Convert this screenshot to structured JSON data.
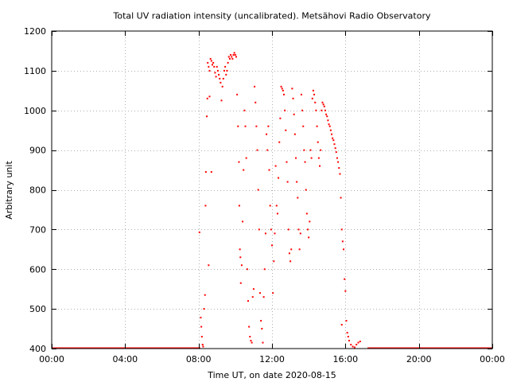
{
  "chart_data": {
    "type": "scatter",
    "title": "Total UV radiation intensity (uncalibrated). Metsähovi Radio Observatory",
    "xlabel": "Time UT, on date 2020-08-15",
    "ylabel": "Arbitrary unit",
    "xlim": [
      0,
      24
    ],
    "ylim": [
      400,
      1200
    ],
    "x_unit": "hours UT",
    "xticks": [
      0,
      4,
      8,
      12,
      16,
      20,
      24
    ],
    "xtick_labels": [
      "00:00",
      "04:00",
      "08:00",
      "12:00",
      "16:00",
      "20:00",
      "00:00"
    ],
    "yticks": [
      400,
      500,
      600,
      700,
      800,
      900,
      1000,
      1100,
      1200
    ],
    "ytick_labels": [
      "400",
      "500",
      "600",
      "700",
      "800",
      "900",
      "1000",
      "1100",
      "1200"
    ],
    "grid": true,
    "color": "#ff0000",
    "baseline": {
      "y": 400,
      "x_ranges": [
        [
          0,
          8.1
        ],
        [
          17.2,
          24
        ]
      ]
    },
    "series": [
      {
        "points": [
          [
            8.05,
            693
          ],
          [
            8.12,
            478
          ],
          [
            8.15,
            455
          ],
          [
            8.18,
            430
          ],
          [
            8.22,
            410
          ],
          [
            8.25,
            405
          ],
          [
            8.3,
            500
          ],
          [
            8.35,
            535
          ],
          [
            8.38,
            760
          ],
          [
            8.4,
            845
          ],
          [
            8.45,
            985
          ],
          [
            8.48,
            1030
          ],
          [
            8.55,
            610
          ],
          [
            8.6,
            1035
          ],
          [
            8.7,
            845
          ],
          [
            8.5,
            1120
          ],
          [
            8.55,
            1110
          ],
          [
            8.6,
            1100
          ],
          [
            8.65,
            1130
          ],
          [
            8.7,
            1125
          ],
          [
            8.75,
            1115
          ],
          [
            8.8,
            1120
          ],
          [
            8.85,
            1110
          ],
          [
            8.9,
            1095
          ],
          [
            8.95,
            1085
          ],
          [
            9.0,
            1110
          ],
          [
            9.05,
            1100
          ],
          [
            9.1,
            1090
          ],
          [
            9.15,
            1080
          ],
          [
            9.2,
            1070
          ],
          [
            9.25,
            1025
          ],
          [
            9.3,
            1060
          ],
          [
            9.35,
            1080
          ],
          [
            9.4,
            1100
          ],
          [
            9.45,
            1110
          ],
          [
            9.5,
            1090
          ],
          [
            9.55,
            1100
          ],
          [
            9.6,
            1120
          ],
          [
            9.65,
            1135
          ],
          [
            9.7,
            1130
          ],
          [
            9.75,
            1140
          ],
          [
            9.8,
            1135
          ],
          [
            9.85,
            1130
          ],
          [
            9.9,
            1140
          ],
          [
            9.95,
            1145
          ],
          [
            10.0,
            1140
          ],
          [
            10.05,
            1135
          ],
          [
            10.1,
            1040
          ],
          [
            10.15,
            960
          ],
          [
            10.2,
            870
          ],
          [
            10.22,
            760
          ],
          [
            10.25,
            650
          ],
          [
            10.28,
            630
          ],
          [
            10.3,
            565
          ],
          [
            10.35,
            610
          ],
          [
            10.4,
            720
          ],
          [
            10.45,
            850
          ],
          [
            10.5,
            1000
          ],
          [
            10.55,
            960
          ],
          [
            10.6,
            880
          ],
          [
            10.65,
            600
          ],
          [
            10.7,
            520
          ],
          [
            10.75,
            455
          ],
          [
            10.8,
            430
          ],
          [
            10.85,
            420
          ],
          [
            10.9,
            415
          ],
          [
            10.95,
            530
          ],
          [
            11.0,
            550
          ],
          [
            11.05,
            1060
          ],
          [
            11.1,
            1020
          ],
          [
            11.15,
            960
          ],
          [
            11.2,
            900
          ],
          [
            11.25,
            800
          ],
          [
            11.3,
            700
          ],
          [
            11.35,
            540
          ],
          [
            11.4,
            470
          ],
          [
            11.45,
            450
          ],
          [
            11.5,
            415
          ],
          [
            11.55,
            530
          ],
          [
            11.6,
            600
          ],
          [
            11.65,
            690
          ],
          [
            11.7,
            940
          ],
          [
            11.75,
            900
          ],
          [
            11.8,
            960
          ],
          [
            11.85,
            850
          ],
          [
            11.9,
            760
          ],
          [
            11.95,
            700
          ],
          [
            12.0,
            660
          ],
          [
            12.05,
            540
          ],
          [
            12.1,
            620
          ],
          [
            12.15,
            690
          ],
          [
            12.2,
            860
          ],
          [
            12.25,
            760
          ],
          [
            12.3,
            740
          ],
          [
            12.35,
            830
          ],
          [
            12.4,
            920
          ],
          [
            12.45,
            980
          ],
          [
            12.5,
            1060
          ],
          [
            12.55,
            1055
          ],
          [
            12.6,
            1050
          ],
          [
            12.65,
            1040
          ],
          [
            12.7,
            1000
          ],
          [
            12.75,
            950
          ],
          [
            12.8,
            870
          ],
          [
            12.85,
            820
          ],
          [
            12.9,
            700
          ],
          [
            12.95,
            640
          ],
          [
            13.0,
            620
          ],
          [
            13.05,
            650
          ],
          [
            13.1,
            1055
          ],
          [
            13.15,
            1030
          ],
          [
            13.2,
            990
          ],
          [
            13.25,
            940
          ],
          [
            13.3,
            880
          ],
          [
            13.35,
            820
          ],
          [
            13.4,
            780
          ],
          [
            13.45,
            700
          ],
          [
            13.5,
            650
          ],
          [
            13.55,
            690
          ],
          [
            13.6,
            1040
          ],
          [
            13.65,
            1000
          ],
          [
            13.7,
            960
          ],
          [
            13.75,
            900
          ],
          [
            13.8,
            870
          ],
          [
            13.85,
            800
          ],
          [
            13.9,
            740
          ],
          [
            13.95,
            700
          ],
          [
            14.0,
            680
          ],
          [
            14.05,
            720
          ],
          [
            14.1,
            900
          ],
          [
            14.15,
            880
          ],
          [
            14.2,
            1030
          ],
          [
            14.25,
            1050
          ],
          [
            14.3,
            1040
          ],
          [
            14.35,
            1020
          ],
          [
            14.4,
            1000
          ],
          [
            14.45,
            960
          ],
          [
            14.5,
            920
          ],
          [
            14.55,
            880
          ],
          [
            14.6,
            860
          ],
          [
            14.65,
            900
          ],
          [
            14.7,
            1000
          ],
          [
            14.75,
            1020
          ],
          [
            14.8,
            1015
          ],
          [
            14.85,
            1010
          ],
          [
            14.9,
            1000
          ],
          [
            14.95,
            990
          ],
          [
            15.0,
            985
          ],
          [
            15.05,
            975
          ],
          [
            15.1,
            965
          ],
          [
            15.15,
            960
          ],
          [
            15.2,
            950
          ],
          [
            15.25,
            940
          ],
          [
            15.3,
            930
          ],
          [
            15.35,
            925
          ],
          [
            15.4,
            915
          ],
          [
            15.45,
            905
          ],
          [
            15.5,
            895
          ],
          [
            15.55,
            880
          ],
          [
            15.6,
            870
          ],
          [
            15.65,
            855
          ],
          [
            15.7,
            840
          ],
          [
            15.75,
            780
          ],
          [
            15.8,
            700
          ],
          [
            15.85,
            670
          ],
          [
            15.9,
            650
          ],
          [
            15.95,
            575
          ],
          [
            16.0,
            545
          ],
          [
            15.8,
            460
          ],
          [
            16.05,
            470
          ],
          [
            16.1,
            440
          ],
          [
            16.15,
            430
          ],
          [
            16.2,
            420
          ],
          [
            16.3,
            410
          ],
          [
            16.4,
            405
          ],
          [
            16.5,
            403
          ],
          [
            16.6,
            410
          ],
          [
            16.7,
            415
          ],
          [
            16.8,
            418
          ]
        ]
      }
    ]
  }
}
